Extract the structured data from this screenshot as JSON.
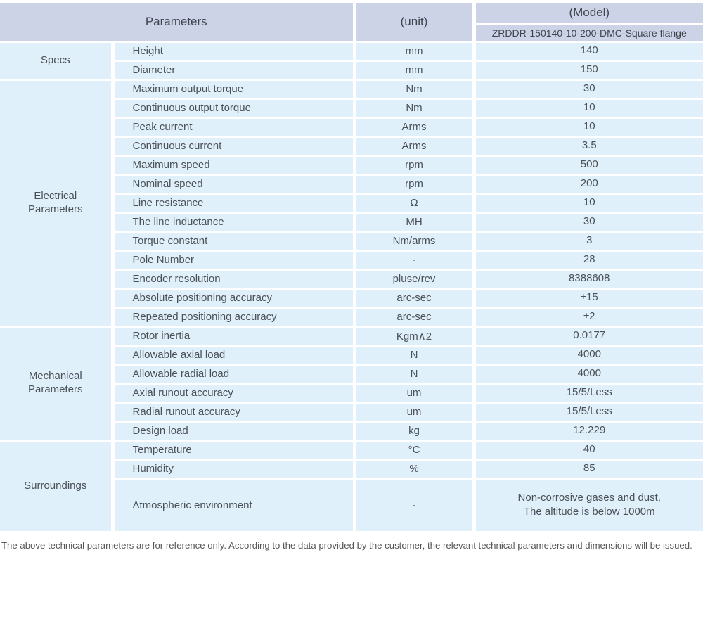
{
  "colors": {
    "header_bg": "#ccd3e7",
    "cell_bg": "#dff0fa",
    "header_text": "#3f444c",
    "cell_text": "#4b5056",
    "footer_text": "#575757",
    "page_bg": "#ffffff"
  },
  "header": {
    "parameters_label": "Parameters",
    "unit_label": "(unit)",
    "model_label": "(Model)",
    "model_value": "ZRDDR-150140-10-200-DMC-Square flange"
  },
  "sections": [
    {
      "name": "Specs",
      "rows": [
        {
          "param": "Height",
          "unit": "mm",
          "value": "140"
        },
        {
          "param": "Diameter",
          "unit": "mm",
          "value": "150"
        }
      ]
    },
    {
      "name": "Electrical\nParameters",
      "rows": [
        {
          "param": "Maximum output torque",
          "unit": "Nm",
          "value": "30"
        },
        {
          "param": "Continuous output torque",
          "unit": "Nm",
          "value": "10"
        },
        {
          "param": "Peak current",
          "unit": "Arms",
          "value": "10"
        },
        {
          "param": "Continuous current",
          "unit": "Arms",
          "value": "3.5"
        },
        {
          "param": "Maximum speed",
          "unit": "rpm",
          "value": "500"
        },
        {
          "param": "Nominal speed",
          "unit": "rpm",
          "value": "200"
        },
        {
          "param": "Line resistance",
          "unit": "Ω",
          "value": "10"
        },
        {
          "param": "The line inductance",
          "unit": "MH",
          "value": "30"
        },
        {
          "param": "Torque constant",
          "unit": "Nm/arms",
          "value": "3"
        },
        {
          "param": "Pole Number",
          "unit": "-",
          "value": "28"
        },
        {
          "param": "Encoder resolution",
          "unit": "pluse/rev",
          "value": "8388608"
        },
        {
          "param": "Absolute positioning accuracy",
          "unit": "arc-sec",
          "value": "±15"
        },
        {
          "param": "Repeated positioning accuracy",
          "unit": "arc-sec",
          "value": "±2"
        }
      ]
    },
    {
      "name": "Mechanical\nParameters",
      "rows": [
        {
          "param": "Rotor inertia",
          "unit": "Kgm∧2",
          "value": "0.0177"
        },
        {
          "param": "Allowable axial load",
          "unit": "N",
          "value": "4000"
        },
        {
          "param": "Allowable radial load",
          "unit": "N",
          "value": "4000"
        },
        {
          "param": "Axial runout accuracy",
          "unit": "um",
          "value": "15/5/Less"
        },
        {
          "param": "Radial runout accuracy",
          "unit": "um",
          "value": "15/5/Less"
        },
        {
          "param": "Design load",
          "unit": "kg",
          "value": "12.229"
        }
      ]
    },
    {
      "name": "Surroundings",
      "rows": [
        {
          "param": "Temperature",
          "unit": "°C",
          "value": "40"
        },
        {
          "param": "Humidity",
          "unit": "%",
          "value": "85"
        },
        {
          "param": "Atmospheric environment",
          "unit": "-",
          "value": "Non-corrosive gases and dust,\nThe altitude is below 1000m"
        }
      ]
    }
  ],
  "footer": {
    "note": "The above technical parameters are for reference only. According to the data provided by the customer, the relevant technical parameters and dimensions will be issued."
  }
}
